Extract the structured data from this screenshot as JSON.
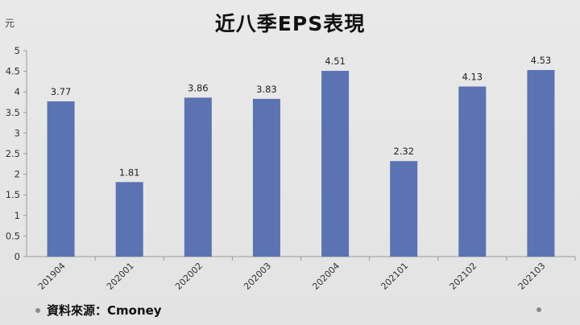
{
  "title": "近八季EPS表現",
  "unit": "元",
  "source": "資料來源：Cmoney",
  "chart_data": {
    "type": "bar",
    "title": "近八季EPS表現",
    "ylabel": "元",
    "xlabel": "",
    "categories": [
      "201904",
      "202001",
      "202002",
      "202003",
      "202004",
      "202101",
      "202102",
      "202103"
    ],
    "values": [
      3.77,
      1.81,
      3.86,
      3.83,
      4.51,
      2.32,
      4.13,
      4.53
    ],
    "data_labels": [
      "3.77",
      "1.81",
      "3.86",
      "3.83",
      "4.51",
      "2.32",
      "4.13",
      "4.53"
    ],
    "yticks": [
      "0",
      "0.5",
      "1",
      "1.5",
      "2",
      "2.5",
      "3",
      "3.5",
      "4",
      "4.5",
      "5"
    ],
    "ylim": [
      0,
      5
    ],
    "grid": false,
    "legend": "none",
    "bar_color": "#5b73b3"
  }
}
